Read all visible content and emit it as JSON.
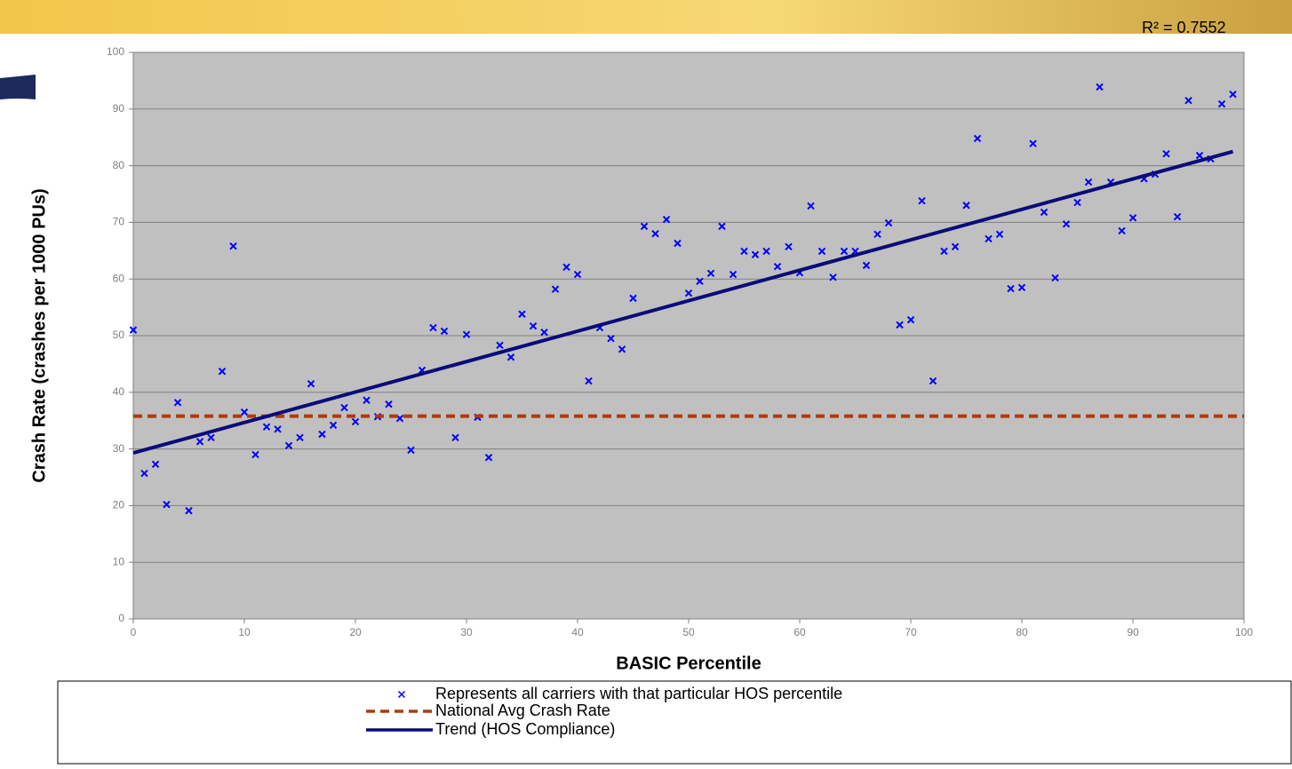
{
  "chart_data": {
    "type": "scatter",
    "xlabel": "BASIC Percentile",
    "ylabel": "Crash Rate (crashes per 1000 PUs)",
    "annotation": "R² = 0.7552",
    "xlim": [
      0,
      100
    ],
    "xticks": [
      0,
      10,
      20,
      30,
      40,
      50,
      60,
      70,
      80,
      90,
      100
    ],
    "ylim": [
      0,
      100
    ],
    "yticks": [
      0,
      10,
      20,
      30,
      40,
      50,
      60,
      70,
      80,
      90,
      100
    ],
    "grid": true,
    "series": [
      {
        "name": "Represents all carriers with that particular HOS percentile",
        "color": "#0000ff",
        "style": "markers",
        "x": [
          0,
          1,
          2,
          3,
          4,
          5,
          6,
          7,
          8,
          9,
          10,
          11,
          12,
          13,
          14,
          15,
          16,
          17,
          18,
          19,
          20,
          21,
          22,
          23,
          24,
          25,
          26,
          27,
          28,
          29,
          30,
          31,
          32,
          33,
          34,
          35,
          36,
          37,
          38,
          39,
          40,
          41,
          42,
          43,
          44,
          45,
          46,
          47,
          48,
          49,
          50,
          51,
          52,
          53,
          54,
          55,
          56,
          57,
          58,
          59,
          60,
          61,
          62,
          63,
          64,
          65,
          66,
          67,
          68,
          69,
          70,
          71,
          72,
          73,
          74,
          75,
          76,
          77,
          78,
          79,
          80,
          81,
          82,
          83,
          84,
          85,
          86,
          87,
          88,
          89,
          90,
          91,
          92,
          93,
          94,
          95,
          96,
          97,
          98,
          99
        ],
        "values": [
          51,
          25.7,
          27.3,
          20.2,
          38.2,
          19.1,
          31.3,
          32,
          43.7,
          65.8,
          36.5,
          29,
          33.9,
          33.5,
          30.6,
          32,
          41.5,
          32.6,
          34.2,
          37.3,
          34.8,
          38.6,
          35.7,
          37.9,
          35.4,
          29.8,
          43.9,
          51.4,
          50.8,
          32,
          50.2,
          35.6,
          28.5,
          48.3,
          46.2,
          53.8,
          51.7,
          50.6,
          58.2,
          62.1,
          60.8,
          42,
          51.4,
          49.5,
          47.6,
          56.6,
          69.3,
          68,
          70.5,
          66.3,
          57.5,
          59.6,
          61,
          69.3,
          60.8,
          64.9,
          64.3,
          64.9,
          62.2,
          65.7,
          61.1,
          72.9,
          64.9,
          60.3,
          64.9,
          64.9,
          62.4,
          67.9,
          69.9,
          51.9,
          52.8,
          73.8,
          42,
          64.9,
          65.7,
          73,
          84.8,
          67.1,
          67.9,
          58.3,
          58.5,
          83.9,
          71.8,
          60.2,
          69.7,
          73.5,
          77.1,
          93.9,
          77.1,
          68.5,
          70.8,
          77.7,
          78.5,
          82.1,
          71,
          91.5,
          81.8,
          81.2,
          90.9,
          92.6
        ]
      },
      {
        "name": "National Avg Crash Rate",
        "color": "#b03a08",
        "style": "dashed",
        "x": [
          0,
          100
        ],
        "values": [
          35.8,
          35.8
        ]
      },
      {
        "name": "Trend (HOS Compliance)",
        "color": "#0b0b7a",
        "style": "solid",
        "x": [
          0,
          99
        ],
        "values": [
          29.3,
          82.5
        ]
      }
    ]
  }
}
